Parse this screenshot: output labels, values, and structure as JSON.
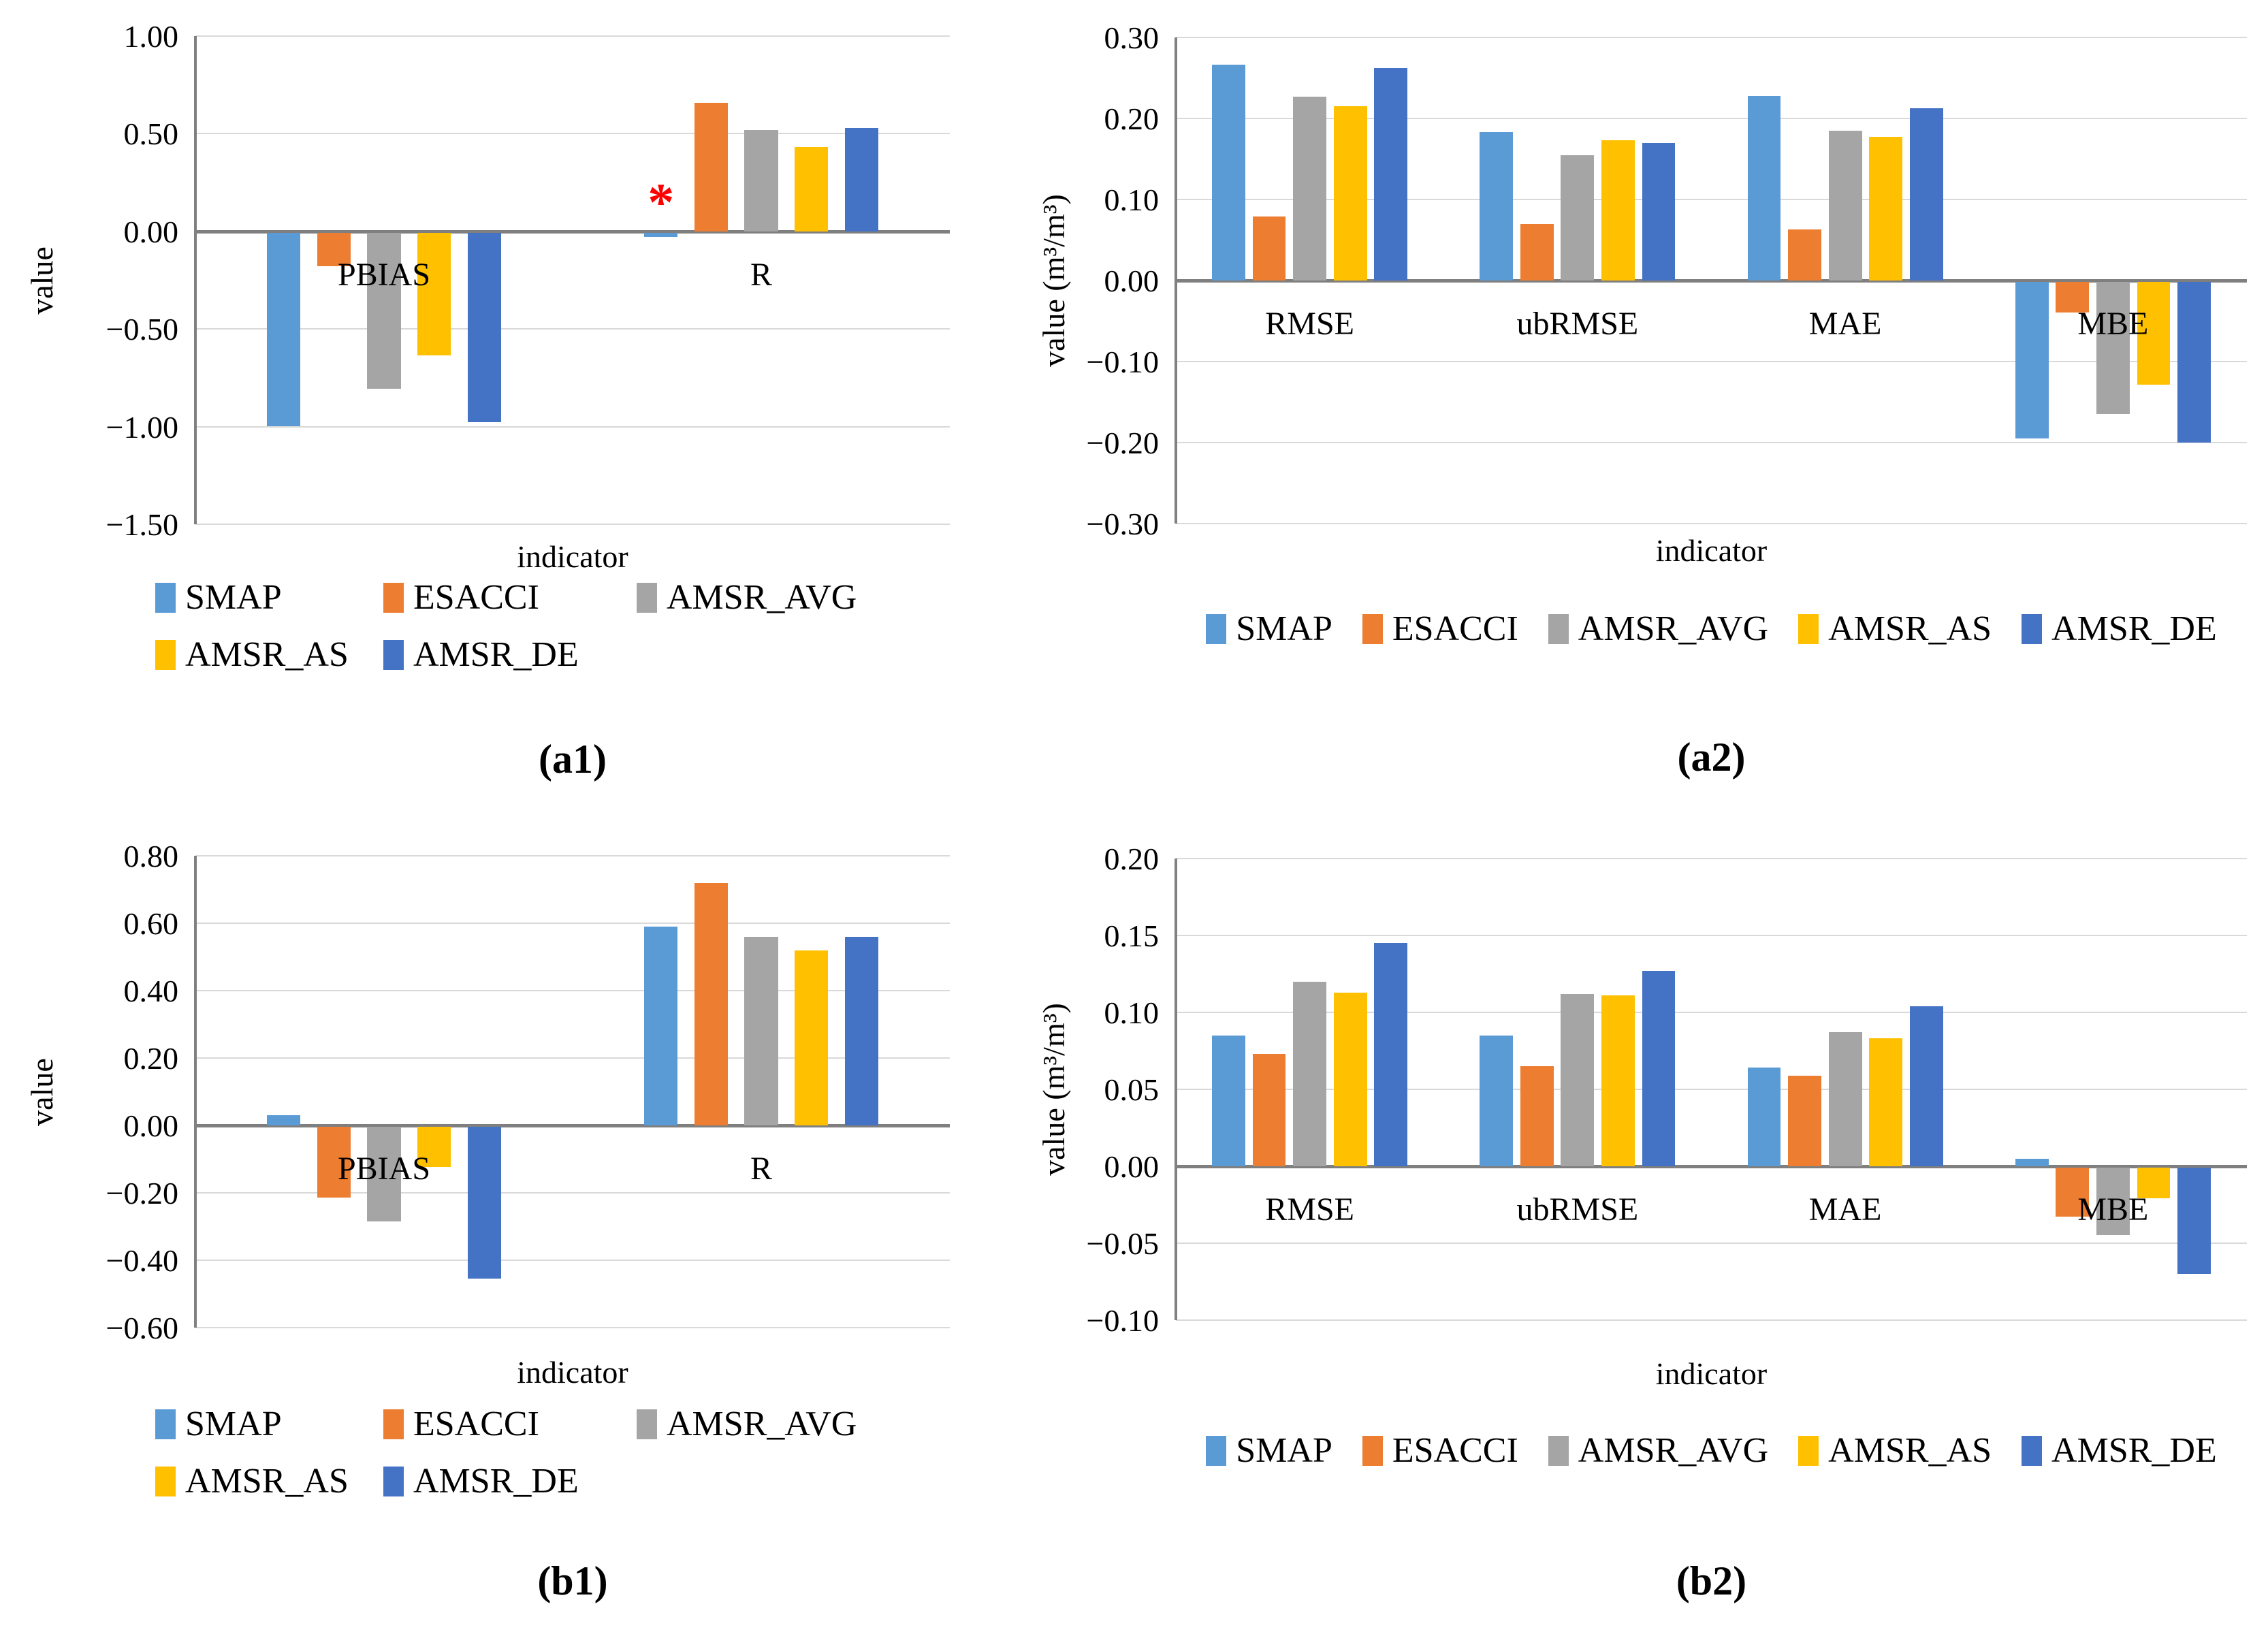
{
  "figure": {
    "series_names": [
      "SMAP",
      "ESACCI",
      "AMSR_AVG",
      "AMSR_AS",
      "AMSR_DE"
    ],
    "series_colors": [
      "#5B9BD5",
      "#ED7D31",
      "#A5A5A5",
      "#FFC000",
      "#4472C4"
    ],
    "background": "#FFFFFF",
    "gridline_color": "#D9D9D9",
    "axis_color": "#7F7F7F"
  },
  "chart_data": [
    {
      "id": "a1",
      "type": "bar",
      "caption": "(a1)",
      "title": "",
      "xlabel": "indicator",
      "ylabel": "value",
      "categories": [
        "PBIAS",
        "R"
      ],
      "series": [
        {
          "name": "SMAP",
          "values": [
            -0.99,
            -0.02
          ]
        },
        {
          "name": "ESACCI",
          "values": [
            -0.17,
            0.66
          ]
        },
        {
          "name": "AMSR_AVG",
          "values": [
            -0.8,
            0.52
          ]
        },
        {
          "name": "AMSR_AS",
          "values": [
            -0.63,
            0.43
          ]
        },
        {
          "name": "AMSR_DE",
          "values": [
            -0.97,
            0.53
          ]
        }
      ],
      "ylim": [
        -1.5,
        1.0
      ],
      "ytick_step": 0.5,
      "yticks": [
        "1.00",
        "0.50",
        "0.00",
        "−0.50",
        "−1.00",
        "−1.50"
      ],
      "grid": true,
      "legend_rows": 2,
      "annotation": {
        "text": "*",
        "color": "#FF0000",
        "category": "R",
        "series": "SMAP"
      }
    },
    {
      "id": "a2",
      "type": "bar",
      "caption": "(a2)",
      "title": "",
      "xlabel": "indicator",
      "ylabel": "value (m³/m³)",
      "categories": [
        "RMSE",
        "ubRMSE",
        "MAE",
        "MBE"
      ],
      "series": [
        {
          "name": "SMAP",
          "values": [
            0.266,
            0.183,
            0.228,
            -0.193
          ]
        },
        {
          "name": "ESACCI",
          "values": [
            0.079,
            0.07,
            0.063,
            -0.038
          ]
        },
        {
          "name": "AMSR_AVG",
          "values": [
            0.227,
            0.155,
            0.185,
            -0.163
          ]
        },
        {
          "name": "AMSR_AS",
          "values": [
            0.215,
            0.173,
            0.177,
            -0.127
          ]
        },
        {
          "name": "AMSR_DE",
          "values": [
            0.262,
            0.17,
            0.213,
            -0.198
          ]
        }
      ],
      "ylim": [
        -0.3,
        0.3
      ],
      "ytick_step": 0.1,
      "yticks": [
        "0.30",
        "0.20",
        "0.10",
        "0.00",
        "−0.10",
        "−0.20",
        "−0.30"
      ],
      "grid": true,
      "legend_rows": 1,
      "annotation": null
    },
    {
      "id": "b1",
      "type": "bar",
      "caption": "(b1)",
      "title": "",
      "xlabel": "indicator",
      "ylabel": "value",
      "categories": [
        "PBIAS",
        "R"
      ],
      "series": [
        {
          "name": "SMAP",
          "values": [
            0.03,
            0.59
          ]
        },
        {
          "name": "ESACCI",
          "values": [
            -0.21,
            0.72
          ]
        },
        {
          "name": "AMSR_AVG",
          "values": [
            -0.28,
            0.56
          ]
        },
        {
          "name": "AMSR_AS",
          "values": [
            -0.12,
            0.52
          ]
        },
        {
          "name": "AMSR_DE",
          "values": [
            -0.45,
            0.56
          ]
        }
      ],
      "ylim": [
        -0.6,
        0.8
      ],
      "ytick_step": 0.2,
      "yticks": [
        "0.80",
        "0.60",
        "0.40",
        "0.20",
        "0.00",
        "−0.20",
        "−0.40",
        "−0.60"
      ],
      "grid": true,
      "legend_rows": 2,
      "annotation": null
    },
    {
      "id": "b2",
      "type": "bar",
      "caption": "(b2)",
      "title": "",
      "xlabel": "indicator",
      "ylabel": "value (m³/m³)",
      "categories": [
        "RMSE",
        "ubRMSE",
        "MAE",
        "MBE"
      ],
      "series": [
        {
          "name": "SMAP",
          "values": [
            0.085,
            0.085,
            0.064,
            0.005
          ]
        },
        {
          "name": "ESACCI",
          "values": [
            0.073,
            0.065,
            0.059,
            -0.032
          ]
        },
        {
          "name": "AMSR_AVG",
          "values": [
            0.12,
            0.112,
            0.087,
            -0.044
          ]
        },
        {
          "name": "AMSR_AS",
          "values": [
            0.113,
            0.111,
            0.083,
            -0.02
          ]
        },
        {
          "name": "AMSR_DE",
          "values": [
            0.145,
            0.127,
            0.104,
            -0.069
          ]
        }
      ],
      "ylim": [
        -0.1,
        0.2
      ],
      "ytick_step": 0.05,
      "yticks": [
        "0.20",
        "0.15",
        "0.10",
        "0.05",
        "0.00",
        "−0.05",
        "−0.10"
      ],
      "grid": true,
      "legend_rows": 1,
      "annotation": null
    }
  ]
}
